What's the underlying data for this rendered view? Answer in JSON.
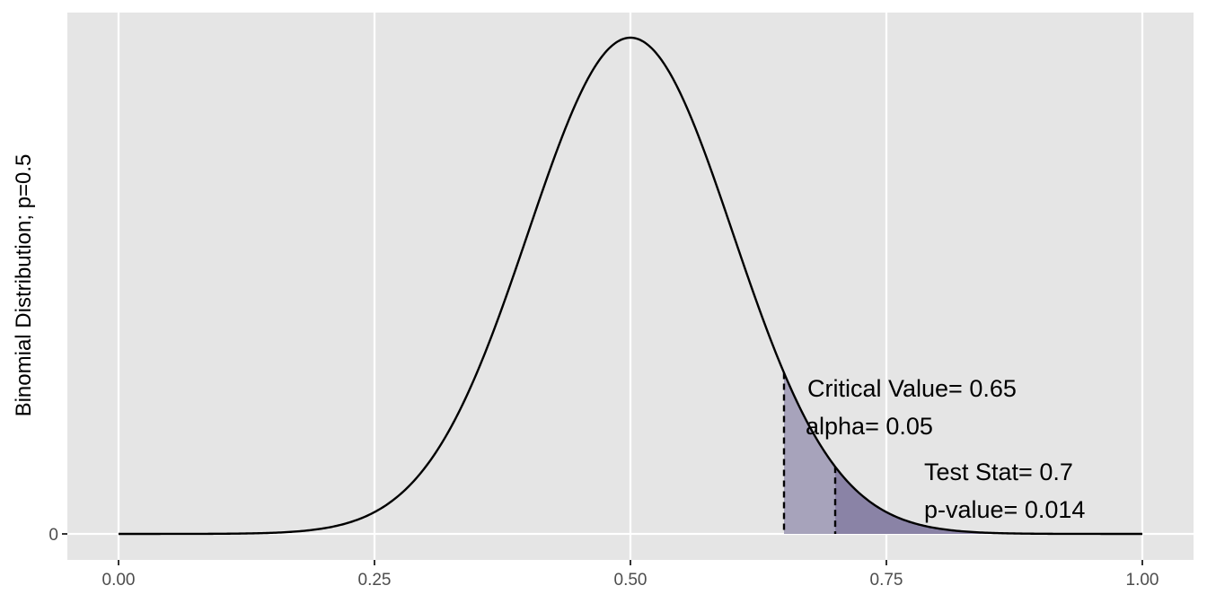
{
  "chart_data": {
    "type": "area",
    "ylabel": "Binomial Distribution; p=0.5",
    "xlabel": "",
    "title": "",
    "xlim": [
      0.0,
      1.0
    ],
    "x_ticks": [
      "0.00",
      "0.25",
      "0.50",
      "0.75",
      "1.00"
    ],
    "x_tick_values": [
      0.0,
      0.25,
      0.5,
      0.75,
      1.0
    ],
    "y_ticks": [
      "0"
    ],
    "y_tick_values": [
      0
    ],
    "distribution": {
      "p": 0.5,
      "sd": 0.1
    },
    "critical_value": 0.65,
    "test_stat": 0.7,
    "annotations": {
      "critical_value_label": "Critical Value= 0.65",
      "alpha_label": "alpha= 0.05",
      "test_stat_label": "Test Stat= 0.7",
      "p_value_label": "p-value= 0.014"
    },
    "grid": true,
    "legend": "none",
    "colors": {
      "panel": "#e5e5e5",
      "grid": "#ffffff",
      "curve": "#000000",
      "alpha_fill": "#a7a3bb",
      "pvalue_fill": "#8a83a6"
    }
  }
}
